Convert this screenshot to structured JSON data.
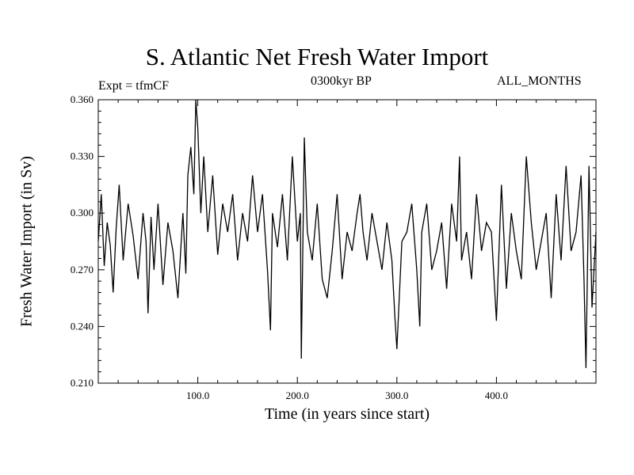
{
  "chart_data": {
    "type": "line",
    "title": "S. Atlantic Net Fresh Water Import",
    "subtitle_left": "Expt = tfmCF",
    "subtitle_center": "0300kyr BP",
    "subtitle_right": "ALL_MONTHS",
    "xlabel": "Time (in years since start)",
    "ylabel": "Fresh Water Import (in Sv)",
    "xlim": [
      0,
      500
    ],
    "ylim": [
      0.21,
      0.36
    ],
    "x_ticks": [
      100,
      200,
      300,
      400
    ],
    "x_tick_labels": [
      "100.0",
      "200.0",
      "300.0",
      "400.0"
    ],
    "y_ticks": [
      0.21,
      0.24,
      0.27,
      0.3,
      0.33,
      0.36
    ],
    "y_tick_labels": [
      "0.210",
      "0.240",
      "0.270",
      "0.300",
      "0.330",
      "0.360"
    ],
    "grid": false,
    "series": [
      {
        "name": "Net Fresh Water Import",
        "x": [
          0,
          3,
          6,
          9,
          12,
          15,
          18,
          21,
          25,
          30,
          35,
          40,
          45,
          48,
          50,
          53,
          56,
          60,
          65,
          70,
          75,
          80,
          85,
          88,
          90,
          93,
          96,
          98,
          100,
          103,
          106,
          110,
          115,
          120,
          125,
          130,
          135,
          140,
          145,
          150,
          155,
          160,
          165,
          170,
          173,
          175,
          180,
          185,
          190,
          195,
          200,
          203,
          204,
          207,
          210,
          215,
          220,
          225,
          230,
          235,
          240,
          245,
          250,
          255,
          260,
          263,
          266,
          270,
          275,
          280,
          285,
          290,
          295,
          298,
          300,
          305,
          310,
          315,
          320,
          323,
          325,
          330,
          335,
          340,
          345,
          350,
          355,
          360,
          363,
          365,
          370,
          375,
          380,
          385,
          390,
          395,
          400,
          405,
          410,
          415,
          420,
          425,
          430,
          435,
          440,
          445,
          450,
          455,
          460,
          465,
          470,
          475,
          480,
          485,
          488,
          490,
          493,
          496,
          500
        ],
        "y": [
          0.285,
          0.31,
          0.272,
          0.295,
          0.283,
          0.258,
          0.292,
          0.315,
          0.275,
          0.305,
          0.288,
          0.265,
          0.3,
          0.285,
          0.247,
          0.298,
          0.27,
          0.305,
          0.262,
          0.295,
          0.28,
          0.255,
          0.3,
          0.268,
          0.32,
          0.335,
          0.31,
          0.36,
          0.345,
          0.3,
          0.33,
          0.29,
          0.32,
          0.278,
          0.305,
          0.29,
          0.31,
          0.275,
          0.3,
          0.285,
          0.32,
          0.29,
          0.31,
          0.27,
          0.238,
          0.3,
          0.282,
          0.31,
          0.275,
          0.33,
          0.285,
          0.3,
          0.223,
          0.34,
          0.29,
          0.275,
          0.305,
          0.265,
          0.255,
          0.28,
          0.31,
          0.265,
          0.29,
          0.28,
          0.3,
          0.31,
          0.29,
          0.275,
          0.3,
          0.285,
          0.27,
          0.295,
          0.275,
          0.245,
          0.228,
          0.285,
          0.29,
          0.305,
          0.27,
          0.24,
          0.29,
          0.305,
          0.27,
          0.28,
          0.295,
          0.26,
          0.305,
          0.285,
          0.33,
          0.275,
          0.29,
          0.265,
          0.31,
          0.28,
          0.295,
          0.29,
          0.243,
          0.315,
          0.26,
          0.3,
          0.28,
          0.265,
          0.33,
          0.295,
          0.27,
          0.285,
          0.3,
          0.255,
          0.31,
          0.275,
          0.325,
          0.28,
          0.29,
          0.32,
          0.265,
          0.218,
          0.325,
          0.25,
          0.29
        ]
      }
    ]
  }
}
